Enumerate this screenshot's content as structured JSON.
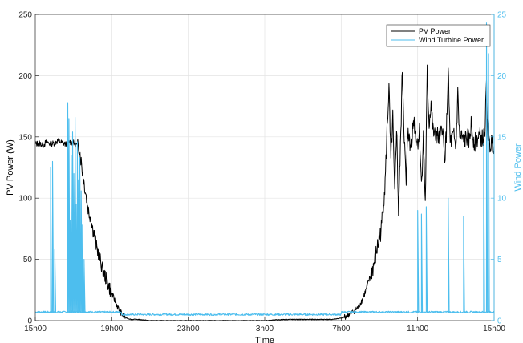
{
  "chart_data": {
    "type": "line",
    "title": "",
    "xlabel": "Time",
    "ylabel_left": "PV Power (W)",
    "ylabel_right": "Wind Power",
    "x_hours_range": [
      15,
      39
    ],
    "x_ticks": [
      {
        "hour": 15,
        "label": "15h00"
      },
      {
        "hour": 19,
        "label": "19h00"
      },
      {
        "hour": 23,
        "label": "23h00"
      },
      {
        "hour": 27,
        "label": "3h00"
      },
      {
        "hour": 31,
        "label": "7h00"
      },
      {
        "hour": 35,
        "label": "11h00"
      },
      {
        "hour": 39,
        "label": "15h00"
      }
    ],
    "ylim_left": [
      0,
      250
    ],
    "yticks_left": [
      0,
      50,
      100,
      150,
      200,
      250
    ],
    "ylim_right": [
      0,
      25
    ],
    "yticks_right": [
      0,
      5,
      10,
      15,
      20,
      25
    ],
    "grid": true,
    "legend_position": "top-right",
    "colors": {
      "pv": "#000000",
      "wind": "#4DBEEE",
      "grid": "#e3e3e3",
      "axes": "#262626"
    },
    "series": [
      {
        "name": "PV Power",
        "axis": "left",
        "x_hours": [
          15.0,
          15.2,
          15.4,
          15.6,
          15.8,
          16.0,
          16.2,
          16.4,
          16.6,
          16.8,
          17.0,
          17.2,
          17.3,
          17.4,
          17.5,
          17.6,
          17.7,
          17.8,
          17.9,
          18.0,
          18.1,
          18.2,
          18.3,
          18.4,
          18.5,
          18.6,
          18.8,
          19.0,
          19.2,
          19.4,
          19.6,
          19.8,
          20.0,
          20.4,
          21.0,
          22.0,
          23.0,
          24.0,
          25.0,
          26.0,
          27.0,
          28.0,
          29.0,
          30.0,
          30.5,
          31.0,
          31.3,
          31.6,
          31.9,
          32.1,
          32.3,
          32.5,
          32.7,
          32.9,
          33.1,
          33.2,
          33.3,
          33.4,
          33.5,
          33.6,
          33.7,
          33.8,
          33.9,
          34.0,
          34.1,
          34.2,
          34.3,
          34.4,
          34.5,
          34.6,
          34.7,
          34.8,
          34.9,
          35.0,
          35.1,
          35.2,
          35.3,
          35.4,
          35.5,
          35.6,
          35.7,
          35.8,
          35.9,
          36.0,
          36.1,
          36.2,
          36.3,
          36.4,
          36.5,
          36.6,
          36.7,
          36.8,
          36.9,
          37.0,
          37.1,
          37.2,
          37.3,
          37.4,
          37.5,
          37.6,
          37.7,
          37.8,
          37.9,
          38.0,
          38.1,
          38.2,
          38.3,
          38.4,
          38.5,
          38.6,
          38.7,
          38.8,
          38.9,
          39.0
        ],
        "values": [
          144,
          145,
          143,
          146,
          144,
          145,
          147,
          145,
          144,
          146,
          145,
          143,
          141,
          130,
          118,
          108,
          98,
          88,
          85,
          75,
          70,
          60,
          55,
          49,
          43,
          38,
          30,
          22,
          15,
          8,
          4,
          2,
          1,
          1,
          0,
          0,
          0,
          0,
          0,
          0,
          0,
          1,
          1,
          1,
          1,
          2,
          4,
          7,
          11,
          17,
          25,
          35,
          45,
          60,
          75,
          95,
          112,
          155,
          190,
          130,
          165,
          100,
          160,
          88,
          140,
          205,
          150,
          110,
          160,
          140,
          150,
          165,
          150,
          145,
          155,
          110,
          150,
          95,
          202,
          160,
          178,
          155,
          150,
          152,
          148,
          150,
          160,
          130,
          152,
          202,
          145,
          148,
          150,
          140,
          185,
          148,
          150,
          145,
          148,
          150,
          146,
          160,
          150,
          145,
          148,
          150,
          150,
          148,
          150,
          190,
          145,
          143,
          146,
          143
        ]
      },
      {
        "name": "Wind Turbine Power",
        "axis": "right",
        "baseline": 0.7,
        "spikes": [
          {
            "h": 15.8,
            "v": 12.5
          },
          {
            "h": 15.9,
            "v": 13.0
          },
          {
            "h": 16.02,
            "v": 5.8
          },
          {
            "h": 16.7,
            "v": 17.8
          },
          {
            "h": 16.76,
            "v": 16.5
          },
          {
            "h": 16.82,
            "v": 8.2
          },
          {
            "h": 16.88,
            "v": 13.5
          },
          {
            "h": 16.95,
            "v": 15.4
          },
          {
            "h": 17.02,
            "v": 12.0
          },
          {
            "h": 17.08,
            "v": 16.6
          },
          {
            "h": 17.14,
            "v": 9.5
          },
          {
            "h": 17.2,
            "v": 14.6
          },
          {
            "h": 17.26,
            "v": 11.5
          },
          {
            "h": 17.33,
            "v": 13.3
          },
          {
            "h": 17.4,
            "v": 10.6
          },
          {
            "h": 17.47,
            "v": 7.8
          },
          {
            "h": 17.55,
            "v": 5.0
          },
          {
            "h": 35.0,
            "v": 9.0
          },
          {
            "h": 35.2,
            "v": 8.7
          },
          {
            "h": 35.45,
            "v": 9.3
          },
          {
            "h": 36.6,
            "v": 10.0
          },
          {
            "h": 37.4,
            "v": 8.5
          },
          {
            "h": 38.45,
            "v": 14.5
          },
          {
            "h": 38.6,
            "v": 24.3
          },
          {
            "h": 38.7,
            "v": 21.8
          }
        ]
      }
    ]
  }
}
